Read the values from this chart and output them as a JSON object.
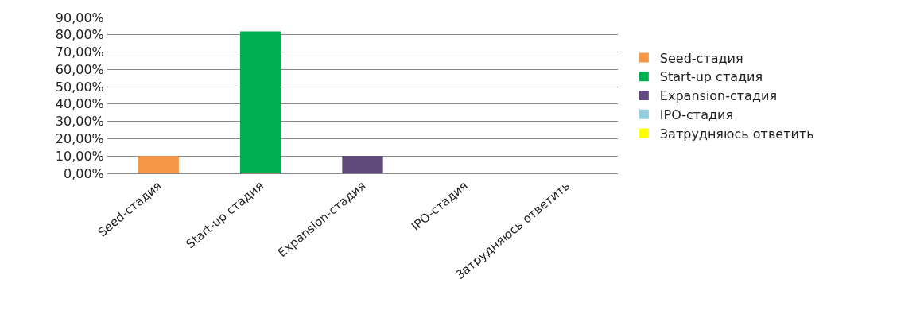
{
  "chart_data": {
    "type": "bar",
    "categories": [
      "Seed-стадия",
      "Start-up стадия",
      "Expansion-стадия",
      "IPO-стадия",
      "Затрудняюсь ответить"
    ],
    "series": [
      {
        "name": "Seed-стадия",
        "color": "#f79646",
        "values": [
          10,
          null,
          null,
          null,
          null
        ]
      },
      {
        "name": "Start-up стадия",
        "color": "#00b050",
        "values": [
          null,
          82,
          null,
          null,
          null
        ]
      },
      {
        "name": "Expansion-стадия",
        "color": "#604a7b",
        "values": [
          null,
          null,
          10,
          null,
          null
        ]
      },
      {
        "name": "IPO-стадия",
        "color": "#92cddc",
        "values": [
          null,
          null,
          null,
          0,
          null
        ]
      },
      {
        "name": "Затрудняюсь ответить",
        "color": "#ffff00",
        "values": [
          null,
          null,
          null,
          null,
          0
        ]
      }
    ],
    "ylim": [
      0,
      90
    ],
    "yticks": [
      {
        "value": 0,
        "label": "0,00%"
      },
      {
        "value": 10,
        "label": "10,00%"
      },
      {
        "value": 20,
        "label": "20,00%"
      },
      {
        "value": 30,
        "label": "30,00%"
      },
      {
        "value": 40,
        "label": "40,00%"
      },
      {
        "value": 50,
        "label": "50,00%"
      },
      {
        "value": 60,
        "label": "60,00%"
      },
      {
        "value": 70,
        "label": "70,00%"
      },
      {
        "value": 80,
        "label": "80,00%"
      },
      {
        "value": 90,
        "label": "90,00%"
      }
    ],
    "grid": "y",
    "legend": "right"
  }
}
